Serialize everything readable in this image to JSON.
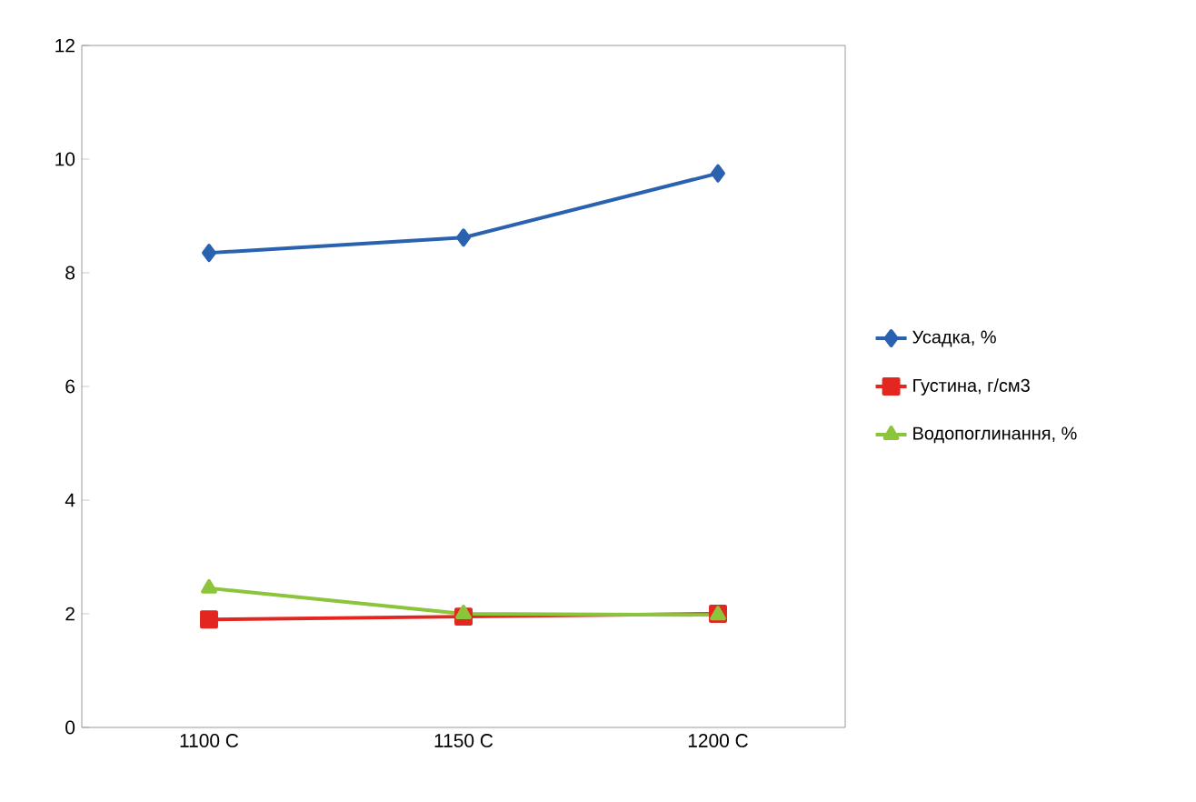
{
  "chart_data": {
    "type": "line",
    "categories": [
      "1100 C",
      "1150 C",
      "1200 C"
    ],
    "series": [
      {
        "name": "Усадка, %",
        "color": "#2a62b0",
        "marker": "diamond",
        "values": [
          8.35,
          8.62,
          9.75
        ]
      },
      {
        "name": "Густина, г/см3",
        "color": "#e3261f",
        "marker": "square",
        "values": [
          1.9,
          1.95,
          2.0
        ]
      },
      {
        "name": "Водопоглинання, %",
        "color": "#8cc43c",
        "marker": "triangle",
        "values": [
          2.45,
          2.0,
          1.98
        ]
      }
    ],
    "ylim": [
      0,
      12
    ],
    "yticks": [
      0,
      2,
      4,
      6,
      8,
      10,
      12
    ],
    "legend": "right",
    "grid": false,
    "line_style": "solid"
  }
}
